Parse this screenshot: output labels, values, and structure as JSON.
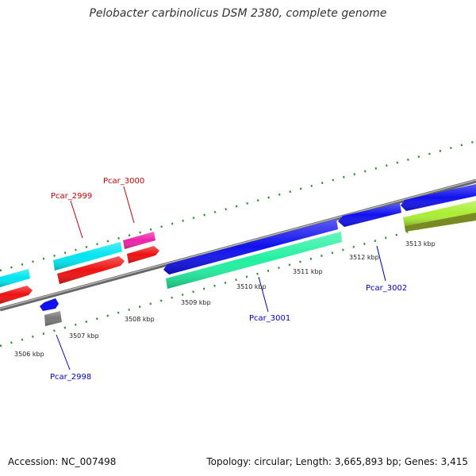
{
  "title": "Pelobacter carbinolicus DSM 2380, complete genome",
  "footer": {
    "accession": "Accession: NC_007498",
    "topology": "Topology: circular; Length: 3,665,893 bp; Genes: 3,415"
  },
  "ticks": [
    "3506 kbp",
    "3507 kbp",
    "3508 kbp",
    "3509 kbp",
    "3510 kbp",
    "3511 kbp",
    "3512 kbp",
    "3513 kbp"
  ],
  "gene_labels": {
    "pcar_2998": "Pcar_2998",
    "pcar_2999": "Pcar_2999",
    "pcar_3000": "Pcar_3000",
    "pcar_3001": "Pcar_3001",
    "pcar_3002": "Pcar_3002"
  },
  "colors": {
    "backbone": "#8c8c8c",
    "ticks": "#2e8b2e",
    "forward_label": "#cc0000",
    "reverse_label": "#0000cc",
    "cyan": "#00e5f0",
    "red": "#ee1111",
    "magenta": "#ee22aa",
    "blue": "#1111ee",
    "teal": "#22f0a0",
    "lime": "#aaee33",
    "olive": "#7a8a22",
    "gray": "#777777"
  }
}
